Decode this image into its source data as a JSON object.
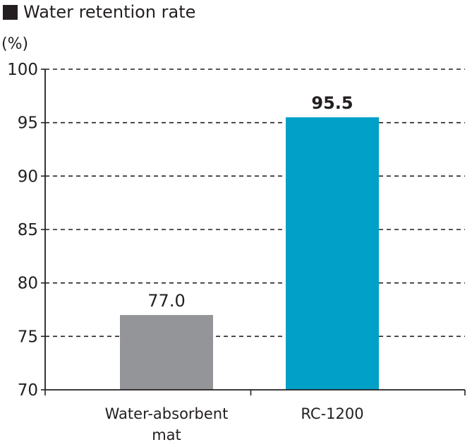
{
  "header": {
    "title": "Water retention rate",
    "unit": "(%)"
  },
  "colors": {
    "text": "#231f20",
    "axis": "#231f20",
    "grid": "#231f20",
    "bar_grey": "#939598",
    "bar_blue": "#00a0c8"
  },
  "chart_data": {
    "type": "bar",
    "title": "Water retention rate",
    "xlabel": "",
    "ylabel": "(%)",
    "ylim": [
      70,
      100
    ],
    "yticks": [
      70,
      75,
      80,
      85,
      90,
      95,
      100
    ],
    "grid": true,
    "categories": [
      [
        "Water-absorbent",
        "mat"
      ],
      [
        "RC-1200"
      ]
    ],
    "values": [
      77.0,
      95.5
    ],
    "data_labels": [
      "77.0",
      "95.5"
    ],
    "data_label_bold": [
      false,
      true
    ],
    "bar_colors": [
      "#939598",
      "#00a0c8"
    ]
  }
}
